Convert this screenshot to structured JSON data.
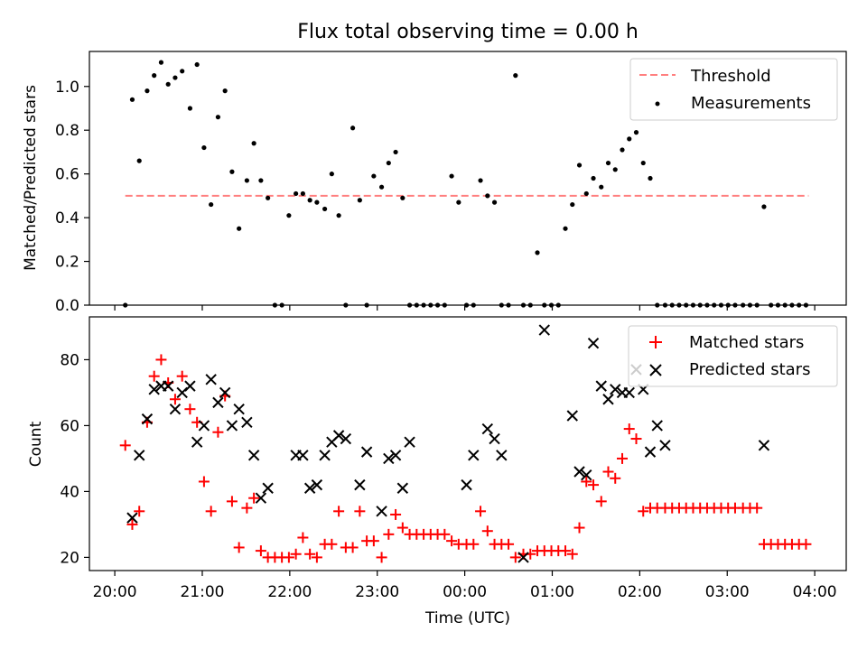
{
  "chart_data": [
    {
      "type": "scatter",
      "title": "Flux total observing time = 0.00 h",
      "xlabel": "",
      "ylabel": "Matched/Predicted stars",
      "x_ticks": [
        "20:00",
        "21:00",
        "22:00",
        "23:00",
        "00:00",
        "01:00",
        "02:00",
        "03:00",
        "04:00"
      ],
      "x_tick_hours": [
        0,
        1,
        2,
        3,
        4,
        5,
        6,
        7,
        8
      ],
      "xlim_hours": [
        -0.29,
        8.36
      ],
      "ylim": [
        0,
        1.16
      ],
      "y_ticks": [
        "0.0",
        "0.2",
        "0.4",
        "0.6",
        "0.8",
        "1.0"
      ],
      "y_tick_values": [
        0,
        0.2,
        0.4,
        0.6,
        0.8,
        1.0
      ],
      "legend": {
        "position": "top-right",
        "threshold_label": "Threshold",
        "measurements_label": "Measurements"
      },
      "threshold": {
        "value": 0.5,
        "x_start_hours": 0.12,
        "x_end_hours": 7.93,
        "color": "#ff7f7f"
      },
      "x_hours": [
        0.12,
        0.2,
        0.28,
        0.37,
        0.45,
        0.53,
        0.61,
        0.69,
        0.77,
        0.86,
        0.94,
        1.02,
        1.1,
        1.18,
        1.26,
        1.34,
        1.42,
        1.51,
        1.59,
        1.67,
        1.75,
        1.83,
        1.91,
        1.99,
        2.07,
        2.15,
        2.23,
        2.31,
        2.4,
        2.48,
        2.56,
        2.64,
        2.72,
        2.8,
        2.88,
        2.96,
        3.05,
        3.13,
        3.21,
        3.29,
        3.37,
        3.45,
        3.53,
        3.61,
        3.69,
        3.77,
        3.85,
        3.93,
        4.02,
        4.1,
        4.18,
        4.26,
        4.34,
        4.42,
        4.5,
        4.58,
        4.67,
        4.75,
        4.83,
        4.91,
        4.99,
        5.07,
        5.15,
        5.23,
        5.31,
        5.39,
        5.47,
        5.56,
        5.64,
        5.72,
        5.8,
        5.88,
        5.96,
        6.04,
        6.12,
        6.2,
        6.29,
        6.37,
        6.45,
        6.53,
        6.61,
        6.69,
        6.77,
        6.85,
        6.93,
        7.01,
        7.09,
        7.18,
        7.26,
        7.34,
        7.42,
        7.5,
        7.58,
        7.66,
        7.74,
        7.82,
        7.9
      ],
      "y": [
        0.0,
        0.94,
        0.66,
        0.98,
        1.05,
        1.11,
        1.01,
        1.04,
        1.07,
        0.9,
        1.1,
        0.72,
        0.46,
        0.86,
        0.98,
        0.61,
        0.35,
        0.57,
        0.74,
        0.57,
        0.49,
        0.0,
        0.0,
        0.41,
        0.51,
        0.51,
        0.48,
        0.47,
        0.44,
        0.6,
        0.41,
        0.0,
        0.81,
        0.48,
        0.0,
        0.59,
        0.54,
        0.65,
        0.7,
        0.49,
        0.0,
        0.0,
        0.0,
        0.0,
        0.0,
        0.0,
        0.59,
        0.47,
        0.0,
        0.0,
        0.57,
        0.5,
        0.47,
        0.0,
        0.0,
        1.05,
        0.0,
        0.0,
        0.24,
        0.0,
        0.0,
        0.0,
        0.35,
        0.46,
        0.64,
        0.51,
        0.58,
        0.54,
        0.65,
        0.62,
        0.71,
        0.76,
        0.79,
        0.65,
        0.58,
        0.0,
        0.0,
        0.0,
        0.0,
        0.0,
        0.0,
        0.0,
        0.0,
        0.0,
        0.0,
        0.0,
        0.0,
        0.0,
        0.0,
        0.0,
        0.45,
        0.0,
        0.0,
        0.0,
        0.0,
        0.0,
        0.0
      ]
    },
    {
      "type": "scatter",
      "title": "",
      "xlabel": "Time (UTC)",
      "ylabel": "Count",
      "x_ticks": [
        "20:00",
        "21:00",
        "22:00",
        "23:00",
        "00:00",
        "01:00",
        "02:00",
        "03:00",
        "04:00"
      ],
      "x_tick_hours": [
        0,
        1,
        2,
        3,
        4,
        5,
        6,
        7,
        8
      ],
      "xlim_hours": [
        -0.29,
        8.36
      ],
      "ylim": [
        16,
        93
      ],
      "y_ticks": [
        "20",
        "40",
        "60",
        "80"
      ],
      "y_tick_values": [
        20,
        40,
        60,
        80
      ],
      "legend": {
        "position": "top-right",
        "matched_label": "Matched stars",
        "predicted_label": "Predicted stars"
      },
      "matched": {
        "color": "#ff0000",
        "x_hours": [
          0.12,
          0.2,
          0.28,
          0.37,
          0.45,
          0.53,
          0.61,
          0.69,
          0.77,
          0.86,
          0.94,
          1.02,
          1.1,
          1.18,
          1.26,
          1.34,
          1.42,
          1.51,
          1.59,
          1.67,
          1.75,
          1.83,
          1.91,
          1.99,
          2.07,
          2.15,
          2.23,
          2.31,
          2.4,
          2.48,
          2.56,
          2.64,
          2.72,
          2.8,
          2.88,
          2.96,
          3.05,
          3.13,
          3.21,
          3.29,
          3.37,
          3.45,
          3.53,
          3.61,
          3.69,
          3.77,
          3.85,
          3.93,
          4.02,
          4.1,
          4.18,
          4.26,
          4.34,
          4.42,
          4.5,
          4.58,
          4.67,
          4.75,
          4.83,
          4.91,
          4.99,
          5.07,
          5.15,
          5.23,
          5.31,
          5.39,
          5.47,
          5.56,
          5.64,
          5.72,
          5.8,
          5.88,
          5.96,
          6.04,
          6.12,
          6.2,
          6.29,
          6.37,
          6.45,
          6.53,
          6.61,
          6.69,
          6.77,
          6.85,
          6.93,
          7.01,
          7.09,
          7.18,
          7.26,
          7.34,
          7.42,
          7.5,
          7.58,
          7.66,
          7.74,
          7.82,
          7.9
        ],
        "y": [
          54,
          30,
          34,
          61,
          75,
          80,
          73,
          68,
          75,
          65,
          61,
          43,
          34,
          58,
          69,
          37,
          23,
          35,
          38,
          22,
          20,
          20,
          20,
          20,
          21,
          26,
          21,
          20,
          24,
          24,
          34,
          23,
          23,
          34,
          25,
          25,
          20,
          27,
          33,
          29,
          27,
          27,
          27,
          27,
          27,
          27,
          25,
          24,
          24,
          24,
          34,
          28,
          24,
          24,
          24,
          20,
          21,
          21,
          22,
          22,
          22,
          22,
          22,
          21,
          29,
          43,
          42,
          37,
          46,
          44,
          50,
          59,
          56,
          34,
          35,
          35,
          35,
          35,
          35,
          35,
          35,
          35,
          35,
          35,
          35,
          35,
          35,
          35,
          35,
          35,
          24,
          24,
          24,
          24,
          24,
          24,
          24
        ]
      },
      "predicted": {
        "color": "#000000",
        "x_hours": [
          0.2,
          0.28,
          0.37,
          0.45,
          0.53,
          0.61,
          0.69,
          0.77,
          0.86,
          0.94,
          1.02,
          1.1,
          1.18,
          1.26,
          1.34,
          1.42,
          1.51,
          1.59,
          1.67,
          1.75,
          2.07,
          2.15,
          2.23,
          2.31,
          2.4,
          2.48,
          2.56,
          2.64,
          2.8,
          2.88,
          3.05,
          3.13,
          3.21,
          3.29,
          3.37,
          4.02,
          4.1,
          4.26,
          4.34,
          4.42,
          4.67,
          4.91,
          5.23,
          5.31,
          5.39,
          5.47,
          5.56,
          5.64,
          5.72,
          5.8,
          5.88,
          5.96,
          6.04,
          6.12,
          6.2,
          6.29,
          7.42
        ],
        "y": [
          32,
          51,
          62,
          71,
          72,
          72,
          65,
          70,
          72,
          55,
          60,
          74,
          67,
          70,
          60,
          65,
          61,
          51,
          38,
          41,
          51,
          51,
          41,
          42,
          51,
          55,
          57,
          56,
          42,
          52,
          34,
          50,
          51,
          41,
          55,
          42,
          51,
          59,
          56,
          51,
          20,
          89,
          63,
          46,
          45,
          85,
          72,
          68,
          71,
          70,
          70,
          77,
          71,
          52,
          60,
          54,
          54
        ]
      }
    }
  ]
}
